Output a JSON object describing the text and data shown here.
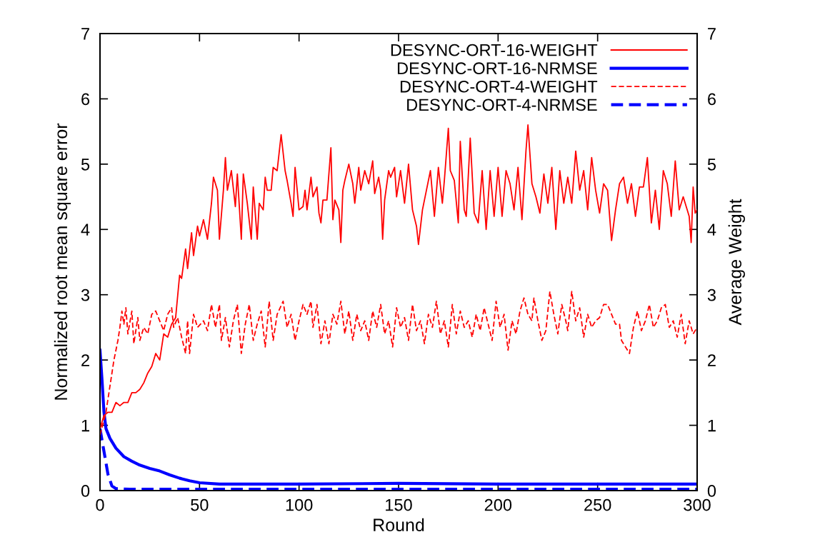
{
  "chart_data": {
    "type": "line",
    "xlabel": "Round",
    "ylabel": "Normalized root mean square error",
    "y2label": "Average Weight",
    "xlim": [
      0,
      300
    ],
    "xticks": [
      0,
      50,
      100,
      150,
      200,
      250,
      300
    ],
    "ylim": [
      0,
      7
    ],
    "yticks": [
      0,
      1,
      2,
      3,
      4,
      5,
      6,
      7
    ],
    "y2lim": [
      0,
      7
    ],
    "y2ticks": [
      0,
      1,
      2,
      3,
      4,
      5,
      6,
      7
    ],
    "grid": false,
    "legend": "top right",
    "marker": "none",
    "series": [
      {
        "name": "DESYNC-ORT-16-WEIGHT",
        "color": "#ff0000",
        "axis": "y2",
        "line_style": "solid",
        "x": [
          0,
          2,
          4,
          6,
          8,
          10,
          12,
          14,
          16,
          18,
          20,
          22,
          24,
          26,
          28,
          30,
          32,
          34,
          36,
          38,
          40,
          41,
          43,
          44,
          46,
          47,
          49,
          50,
          52,
          54,
          56,
          57,
          59,
          60,
          62,
          63,
          64,
          66,
          68,
          69,
          71,
          72,
          74,
          76,
          77,
          79,
          80,
          82,
          83,
          84,
          86,
          87,
          89,
          91,
          93,
          94,
          96,
          97,
          98,
          100,
          102,
          103,
          104,
          106,
          107,
          109,
          110,
          111,
          112,
          114,
          116,
          117,
          118,
          120,
          121,
          122,
          123,
          125,
          127,
          128,
          130,
          131,
          133,
          135,
          137,
          138,
          140,
          141,
          142,
          143,
          145,
          146,
          148,
          149,
          151,
          153,
          155,
          157,
          159,
          160,
          162,
          164,
          166,
          168,
          170,
          172,
          173,
          175,
          176,
          178,
          180,
          181,
          183,
          184,
          186,
          188,
          190,
          192,
          194,
          196,
          198,
          200,
          202,
          204,
          206,
          208,
          210,
          212,
          214,
          215,
          217,
          219,
          221,
          223,
          225,
          227,
          229,
          231,
          233,
          235,
          237,
          239,
          241,
          243,
          245,
          247,
          249,
          251,
          253,
          255,
          257,
          259,
          261,
          263,
          265,
          267,
          269,
          271,
          273,
          275,
          277,
          279,
          281,
          283,
          285,
          287,
          289,
          291,
          293,
          295,
          296,
          297,
          298,
          299,
          300
        ],
        "values": [
          0.95,
          1.15,
          1.2,
          1.2,
          1.35,
          1.3,
          1.35,
          1.35,
          1.5,
          1.5,
          1.55,
          1.65,
          1.8,
          1.9,
          2.1,
          2.0,
          2.4,
          2.35,
          2.55,
          2.65,
          3.3,
          3.25,
          3.7,
          3.4,
          3.95,
          3.6,
          4.05,
          3.9,
          4.15,
          3.85,
          4.4,
          4.8,
          4.6,
          3.85,
          4.6,
          5.1,
          4.6,
          4.9,
          4.35,
          4.85,
          3.85,
          4.85,
          4.4,
          3.85,
          4.65,
          3.85,
          4.4,
          4.3,
          4.8,
          4.6,
          4.6,
          4.95,
          4.9,
          5.45,
          4.9,
          4.75,
          4.4,
          4.2,
          4.95,
          4.3,
          4.35,
          4.6,
          4.3,
          4.8,
          4.5,
          4.65,
          4.25,
          4.1,
          4.45,
          4.45,
          5.25,
          4.15,
          4.45,
          4.3,
          3.8,
          4.6,
          4.75,
          5.0,
          4.7,
          4.4,
          4.95,
          4.6,
          4.9,
          4.7,
          5.05,
          4.55,
          4.8,
          4.6,
          3.85,
          4.45,
          4.9,
          4.8,
          4.95,
          4.5,
          4.9,
          4.4,
          5.0,
          4.3,
          4.05,
          3.77,
          4.3,
          4.6,
          4.9,
          4.2,
          4.95,
          4.4,
          4.75,
          5.55,
          4.9,
          4.75,
          4.1,
          5.35,
          4.3,
          4.2,
          5.4,
          4.25,
          4.1,
          4.9,
          4.0,
          4.9,
          4.2,
          4.95,
          4.2,
          4.9,
          4.7,
          4.3,
          4.95,
          4.15,
          5.2,
          5.6,
          4.7,
          4.5,
          4.25,
          4.85,
          4.4,
          4.95,
          4.0,
          4.9,
          4.4,
          4.8,
          4.4,
          5.2,
          4.6,
          4.9,
          4.3,
          5.1,
          4.6,
          4.25,
          4.7,
          4.6,
          3.83,
          4.3,
          4.7,
          4.8,
          4.4,
          4.7,
          4.2,
          4.65,
          4.65,
          5.1,
          4.1,
          4.6,
          4.0,
          4.9,
          4.7,
          4.2,
          5.05,
          4.3,
          4.5,
          4.3,
          4.2,
          3.8,
          4.65,
          4.25,
          4.3
        ]
      },
      {
        "name": "DESYNC-ORT-16-NRMSE",
        "color": "#0000ff",
        "axis": "y",
        "line_style": "solid",
        "x": [
          0,
          1,
          2,
          3,
          5,
          8,
          12,
          16,
          20,
          25,
          30,
          35,
          40,
          45,
          50,
          60,
          80,
          100,
          150,
          200,
          250,
          300
        ],
        "values": [
          2.15,
          1.7,
          1.2,
          0.95,
          0.8,
          0.65,
          0.52,
          0.45,
          0.39,
          0.34,
          0.3,
          0.24,
          0.19,
          0.15,
          0.12,
          0.1,
          0.1,
          0.1,
          0.11,
          0.1,
          0.1,
          0.1
        ]
      },
      {
        "name": "DESYNC-ORT-4-WEIGHT",
        "color": "#ff0000",
        "axis": "y2",
        "line_style": "dashed",
        "x": [
          0,
          3,
          5,
          7,
          9,
          10,
          11,
          12,
          13,
          14,
          16,
          17,
          19,
          20,
          22,
          24,
          26,
          28,
          30,
          32,
          34,
          36,
          37,
          39,
          41,
          43,
          44,
          45,
          47,
          49,
          52,
          54,
          56,
          58,
          60,
          61,
          63,
          65,
          67,
          69,
          71,
          73,
          75,
          77,
          79,
          81,
          83,
          85,
          87,
          89,
          92,
          94,
          96,
          98,
          100,
          102,
          104,
          106,
          107,
          109,
          111,
          113,
          115,
          117,
          119,
          121,
          123,
          125,
          127,
          129,
          131,
          133,
          135,
          137,
          139,
          141,
          143,
          145,
          147,
          149,
          151,
          153,
          155,
          157,
          159,
          161,
          163,
          165,
          167,
          169,
          171,
          173,
          175,
          177,
          179,
          181,
          183,
          185,
          187,
          189,
          191,
          193,
          195,
          197,
          199,
          201,
          203,
          205,
          207,
          209,
          211,
          213,
          215,
          217,
          218,
          220,
          222,
          224,
          226,
          228,
          230,
          232,
          234,
          235,
          237,
          239,
          241,
          243,
          245,
          247,
          249,
          251,
          253,
          255,
          257,
          259,
          261,
          262,
          264,
          266,
          268,
          270,
          272,
          274,
          276,
          278,
          280,
          282,
          284,
          286,
          288,
          290,
          292,
          294,
          296,
          298,
          300
        ],
        "values": [
          0.85,
          1.2,
          1.6,
          2.0,
          2.3,
          2.5,
          2.75,
          2.55,
          2.8,
          2.4,
          2.75,
          2.25,
          2.65,
          2.3,
          2.5,
          2.4,
          2.7,
          2.75,
          2.6,
          2.45,
          2.7,
          2.8,
          2.5,
          2.65,
          2.35,
          2.1,
          2.6,
          2.1,
          2.7,
          2.5,
          2.6,
          2.45,
          2.85,
          2.5,
          2.85,
          2.3,
          2.65,
          2.2,
          2.6,
          2.85,
          2.1,
          2.55,
          2.85,
          2.3,
          2.55,
          2.75,
          2.2,
          2.9,
          2.3,
          2.7,
          2.9,
          2.5,
          2.7,
          2.3,
          2.6,
          2.85,
          2.7,
          2.9,
          2.5,
          2.85,
          2.25,
          2.6,
          2.25,
          2.7,
          2.55,
          2.9,
          2.4,
          2.75,
          2.3,
          2.7,
          2.45,
          2.6,
          2.3,
          2.75,
          2.5,
          2.85,
          2.4,
          2.6,
          2.2,
          2.8,
          2.5,
          2.65,
          2.3,
          2.85,
          2.45,
          2.6,
          2.25,
          2.7,
          2.5,
          2.9,
          2.4,
          2.6,
          2.2,
          2.85,
          2.4,
          2.75,
          2.5,
          2.6,
          2.35,
          2.7,
          2.45,
          2.8,
          2.55,
          2.3,
          2.9,
          2.5,
          2.7,
          2.15,
          2.6,
          2.4,
          2.75,
          2.95,
          2.7,
          2.6,
          2.95,
          2.6,
          2.3,
          2.45,
          3.05,
          2.7,
          2.4,
          2.85,
          2.6,
          2.45,
          3.05,
          2.6,
          2.8,
          2.35,
          2.7,
          2.5,
          2.6,
          2.65,
          2.85,
          2.85,
          2.7,
          2.55,
          2.55,
          2.3,
          2.2,
          2.1,
          2.5,
          2.75,
          2.45,
          2.6,
          2.85,
          2.5,
          2.6,
          2.8,
          2.85,
          2.5,
          2.6,
          2.35,
          2.7,
          2.25,
          2.6,
          2.4,
          2.5
        ]
      },
      {
        "name": "DESYNC-ORT-4-NRMSE",
        "color": "#0000ff",
        "axis": "y",
        "line_style": "dashed",
        "x": [
          0,
          2,
          4,
          6,
          8,
          15,
          50,
          100,
          150,
          200,
          250,
          300
        ],
        "values": [
          0.95,
          0.6,
          0.25,
          0.07,
          0.03,
          0.02,
          0.02,
          0.02,
          0.02,
          0.02,
          0.02,
          0.02
        ]
      }
    ]
  }
}
